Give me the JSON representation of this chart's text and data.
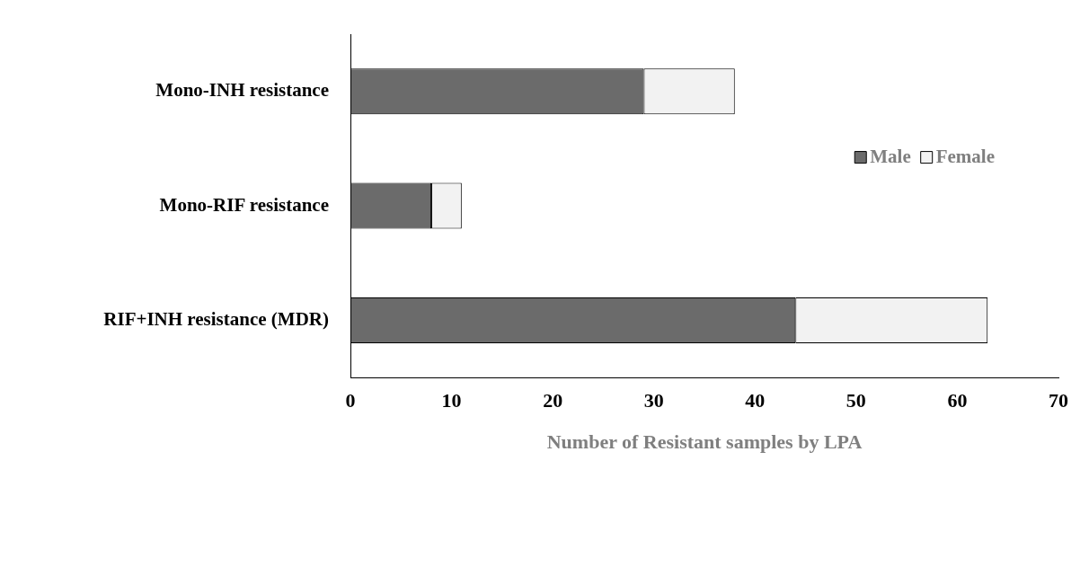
{
  "chart_data": {
    "type": "bar",
    "orientation": "horizontal",
    "stacked": true,
    "categories": [
      "Mono-INH resistance",
      "Mono-RIF resistance",
      "RIF+INH resistance (MDR)"
    ],
    "series": [
      {
        "name": "Male",
        "color": "#6b6b6b",
        "values": [
          29,
          8,
          44
        ]
      },
      {
        "name": "Female",
        "color": "#f2f2f2",
        "values": [
          9,
          3,
          19
        ]
      }
    ],
    "xlabel": "Number of Resistant samples by LPA",
    "xlim": [
      0,
      70
    ],
    "xticks": [
      0,
      10,
      20,
      30,
      40,
      50,
      60,
      70
    ],
    "grid": false,
    "legend": "right"
  }
}
